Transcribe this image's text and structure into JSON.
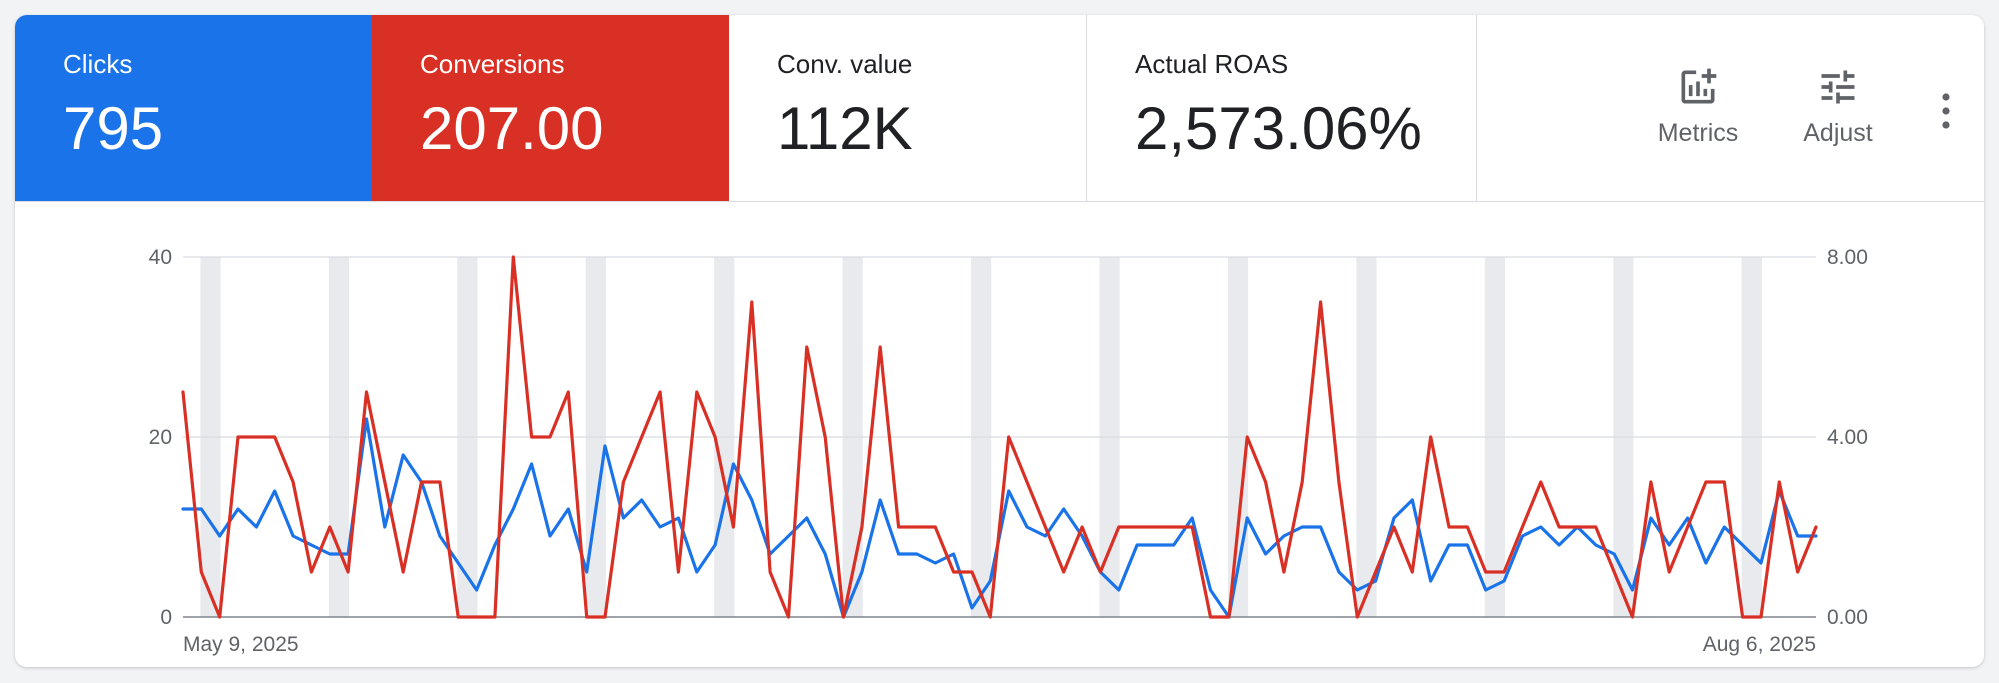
{
  "colors": {
    "clicks": "#1a73e8",
    "conversions": "#d93025",
    "weekend_band": "#e8eaed",
    "grid": "#dadce0",
    "axis_text": "#5f6368"
  },
  "metrics": [
    {
      "key": "clicks",
      "label": "Clicks",
      "value": "795",
      "selected": true
    },
    {
      "key": "conversions",
      "label": "Conversions",
      "value": "207.00",
      "selected": true
    },
    {
      "key": "convvalue",
      "label": "Conv. value",
      "value": "112K",
      "selected": false
    },
    {
      "key": "roas",
      "label": "Actual ROAS",
      "value": "2,573.06%",
      "selected": false
    }
  ],
  "tools": {
    "metrics_label": "Metrics",
    "metrics_icon": "add-chart-icon",
    "adjust_label": "Adjust",
    "adjust_icon": "tune-icon",
    "more_icon": "more-vert-icon"
  },
  "chart_data": {
    "type": "line",
    "x_start_label": "May 9, 2025",
    "x_end_label": "Aug 6, 2025",
    "x_count": 90,
    "left_axis": {
      "ticks": [
        "0",
        "20",
        "40"
      ],
      "range": [
        0,
        40
      ]
    },
    "right_axis": {
      "ticks": [
        "0.00",
        "4.00",
        "8.00"
      ],
      "range": [
        0,
        8
      ]
    },
    "grid": true,
    "weekend_band_dates": [
      "May 10, 2025",
      "May 17, 2025",
      "May 24, 2025",
      "May 31, 2025",
      "Jun 7, 2025",
      "Jun 14, 2025",
      "Jun 21, 2025",
      "Jun 28, 2025",
      "Jul 5, 2025",
      "Jul 12, 2025",
      "Jul 19, 2025",
      "Jul 26, 2025",
      "Aug 2, 2025"
    ],
    "series": [
      {
        "metric": "Clicks",
        "axis": "left",
        "values": [
          12,
          12,
          9,
          12,
          10,
          14,
          9,
          8,
          7,
          7,
          22,
          10,
          18,
          15,
          9,
          6,
          3,
          8,
          12,
          17,
          9,
          12,
          5,
          19,
          11,
          13,
          10,
          11,
          5,
          8,
          17,
          13,
          7,
          9,
          11,
          7,
          0,
          5,
          13,
          7,
          7,
          6,
          7,
          1,
          4,
          14,
          10,
          9,
          12,
          9,
          5,
          3,
          8,
          8,
          8,
          11,
          3,
          0,
          11,
          7,
          9,
          10,
          10,
          5,
          3,
          4,
          11,
          13,
          4,
          8,
          8,
          3,
          4,
          9,
          10,
          8,
          10,
          8,
          7,
          3,
          11,
          8,
          11,
          6,
          10,
          8,
          6,
          14,
          9,
          9
        ]
      },
      {
        "metric": "Conversions",
        "axis": "right",
        "values": [
          5,
          1,
          0,
          4,
          4,
          4,
          3,
          1,
          2,
          1,
          5,
          3,
          1,
          3,
          3,
          0,
          0,
          0,
          8,
          4,
          4,
          5,
          0,
          0,
          3,
          4,
          5,
          1,
          5,
          4,
          2,
          7,
          1,
          0,
          6,
          4,
          0,
          2,
          6,
          2,
          2,
          2,
          1,
          1,
          0,
          4,
          3,
          2,
          1,
          2,
          1,
          2,
          2,
          2,
          2,
          2,
          0,
          0,
          4,
          3,
          1,
          3,
          7,
          3,
          0,
          1,
          2,
          1,
          4,
          2,
          2,
          1,
          1,
          2,
          3,
          2,
          2,
          2,
          1,
          0,
          3,
          1,
          2,
          3,
          3,
          0,
          0,
          3,
          1,
          2
        ]
      }
    ]
  }
}
